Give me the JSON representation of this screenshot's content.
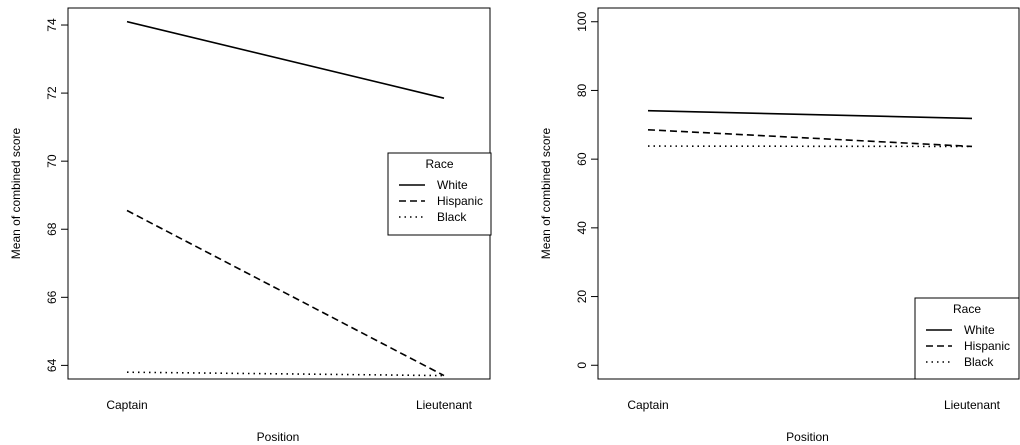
{
  "chart_data": [
    {
      "type": "line",
      "title": "",
      "xlabel": "Position",
      "ylabel": "Mean of combined score",
      "categories": [
        "Captain",
        "Lieutenant"
      ],
      "ylim": [
        63.6,
        74.5
      ],
      "yticks": [
        64,
        66,
        68,
        70,
        72,
        74
      ],
      "legend": {
        "title": "Race",
        "position": "right"
      },
      "series": [
        {
          "name": "White",
          "style": "solid",
          "values": [
            74.1,
            71.85
          ]
        },
        {
          "name": "Hispanic",
          "style": "dashed",
          "values": [
            68.55,
            63.7
          ]
        },
        {
          "name": "Black",
          "style": "dotted",
          "values": [
            63.8,
            63.7
          ]
        }
      ]
    },
    {
      "type": "line",
      "title": "",
      "xlabel": "Position",
      "ylabel": "Mean of combined score",
      "categories": [
        "Captain",
        "Lieutenant"
      ],
      "ylim": [
        -4,
        104
      ],
      "yticks": [
        0,
        20,
        40,
        60,
        80,
        100
      ],
      "legend": {
        "title": "Race",
        "position": "bottom-right"
      },
      "series": [
        {
          "name": "White",
          "style": "solid",
          "values": [
            74.1,
            71.85
          ]
        },
        {
          "name": "Hispanic",
          "style": "dashed",
          "values": [
            68.55,
            63.7
          ]
        },
        {
          "name": "Black",
          "style": "dotted",
          "values": [
            63.8,
            63.7
          ]
        }
      ]
    }
  ]
}
